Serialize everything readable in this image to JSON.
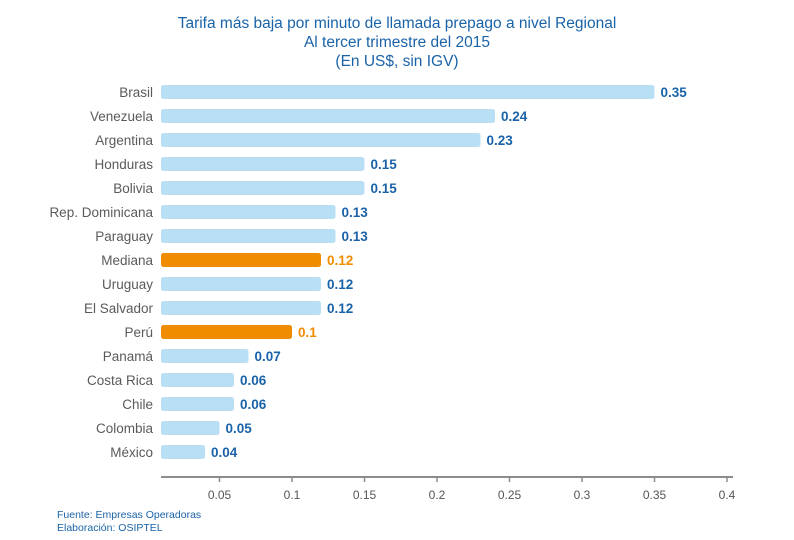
{
  "chart_data": {
    "type": "bar",
    "orientation": "horizontal",
    "title": "Tarifa más baja por minuto de llamada prepago a nivel Regional",
    "subtitle": "Al tercer trimestre del 2015",
    "subtitle2": "(En US$, sin IGV)",
    "categories": [
      "Brasil",
      "Venezuela",
      "Argentina",
      "Honduras",
      "Bolivia",
      "Rep. Dominicana",
      "Paraguay",
      "Mediana",
      "Uruguay",
      "El Salvador",
      "Perú",
      "Panamá",
      "Costa Rica",
      "Chile",
      "Colombia",
      "México"
    ],
    "values": [
      0.35,
      0.24,
      0.23,
      0.15,
      0.15,
      0.13,
      0.13,
      0.12,
      0.12,
      0.12,
      0.1,
      0.07,
      0.06,
      0.06,
      0.05,
      0.04
    ],
    "highlighted": [
      "Mediana",
      "Perú"
    ],
    "xticks": [
      "0.05",
      "0.1",
      "0.15",
      "0.2",
      "0.25",
      "0.3",
      "0.35",
      "0.4"
    ],
    "xlim": [
      0,
      0.4
    ],
    "colors": {
      "bar": "#b9dff5",
      "highlight": "#f08c00",
      "label": "#1a63a8",
      "category": "#5a5a5a",
      "axis": "#8c8c8c"
    }
  },
  "footer": {
    "source": "Fuente: Empresas Operadoras",
    "credit": "Elaboración: OSIPTEL"
  }
}
